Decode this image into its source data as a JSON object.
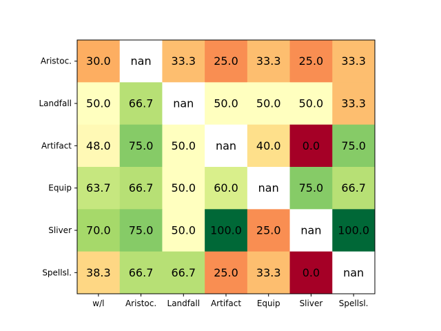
{
  "chart_data": {
    "type": "heatmap",
    "title": "",
    "xlabel": "",
    "ylabel": "",
    "x_categories": [
      "w/l",
      "Aristoc.",
      "Landfall",
      "Artifact",
      "Equip",
      "Sliver",
      "Spellsl."
    ],
    "y_categories": [
      "Aristoc.",
      "Landfall",
      "Artifact",
      "Equip",
      "Sliver",
      "Spellsl."
    ],
    "values": [
      [
        30.0,
        null,
        33.3,
        25.0,
        33.3,
        25.0,
        33.3
      ],
      [
        50.0,
        66.7,
        null,
        50.0,
        50.0,
        50.0,
        33.3
      ],
      [
        48.0,
        75.0,
        50.0,
        null,
        40.0,
        0.0,
        75.0
      ],
      [
        63.7,
        66.7,
        50.0,
        60.0,
        null,
        75.0,
        66.7
      ],
      [
        70.0,
        75.0,
        50.0,
        100.0,
        25.0,
        null,
        100.0
      ],
      [
        38.3,
        66.7,
        66.7,
        25.0,
        33.3,
        0.0,
        null
      ]
    ],
    "cell_labels": [
      [
        "30.0",
        "nan",
        "33.3",
        "25.0",
        "33.3",
        "25.0",
        "33.3"
      ],
      [
        "50.0",
        "66.7",
        "nan",
        "50.0",
        "50.0",
        "50.0",
        "33.3"
      ],
      [
        "48.0",
        "75.0",
        "50.0",
        "nan",
        "40.0",
        "0.0",
        "75.0"
      ],
      [
        "63.7",
        "66.7",
        "50.0",
        "60.0",
        "nan",
        "75.0",
        "66.7"
      ],
      [
        "70.0",
        "75.0",
        "50.0",
        "100.0",
        "25.0",
        "nan",
        "100.0"
      ],
      [
        "38.3",
        "66.7",
        "66.7",
        "25.0",
        "33.3",
        "0.0",
        "nan"
      ]
    ],
    "value_range": [
      0,
      100
    ],
    "colormap": "RdYlGn",
    "nan_color": "#ffffff",
    "grid": false,
    "legend": "none"
  }
}
